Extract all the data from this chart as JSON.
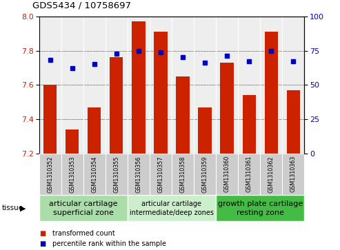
{
  "title": "GDS5434 / 10758697",
  "samples": [
    "GSM1310352",
    "GSM1310353",
    "GSM1310354",
    "GSM1310355",
    "GSM1310356",
    "GSM1310357",
    "GSM1310358",
    "GSM1310359",
    "GSM1310360",
    "GSM1310361",
    "GSM1310362",
    "GSM1310363"
  ],
  "bar_values": [
    7.6,
    7.34,
    7.47,
    7.76,
    7.97,
    7.91,
    7.65,
    7.47,
    7.73,
    7.54,
    7.91,
    7.57
  ],
  "percentile_values": [
    68,
    62,
    65,
    73,
    75,
    74,
    70,
    66,
    71,
    67,
    75,
    67
  ],
  "y_min": 7.2,
  "y_max": 8.0,
  "y_ticks": [
    7.2,
    7.4,
    7.6,
    7.8,
    8.0
  ],
  "y2_ticks": [
    0,
    25,
    50,
    75,
    100
  ],
  "bar_color": "#cc2200",
  "dot_color": "#0000bb",
  "plot_bg_color": "#eeeeee",
  "sample_bg_color": "#cccccc",
  "group_colors": [
    "#aaddaa",
    "#cceecc",
    "#44bb44"
  ],
  "group_labels": [
    "articular cartilage\nsuperficial zone",
    "articular cartilage\nintermediate/deep zones",
    "growth plate cartilage\nresting zone"
  ],
  "group_ranges": [
    [
      0,
      4
    ],
    [
      4,
      8
    ],
    [
      8,
      12
    ]
  ],
  "group_fontsizes": [
    8,
    7,
    8
  ],
  "legend_items": [
    {
      "color": "#cc2200",
      "label": "transformed count"
    },
    {
      "color": "#0000bb",
      "label": "percentile rank within the sample"
    }
  ],
  "tissue_label": "tissue",
  "tissue_arrow": true
}
